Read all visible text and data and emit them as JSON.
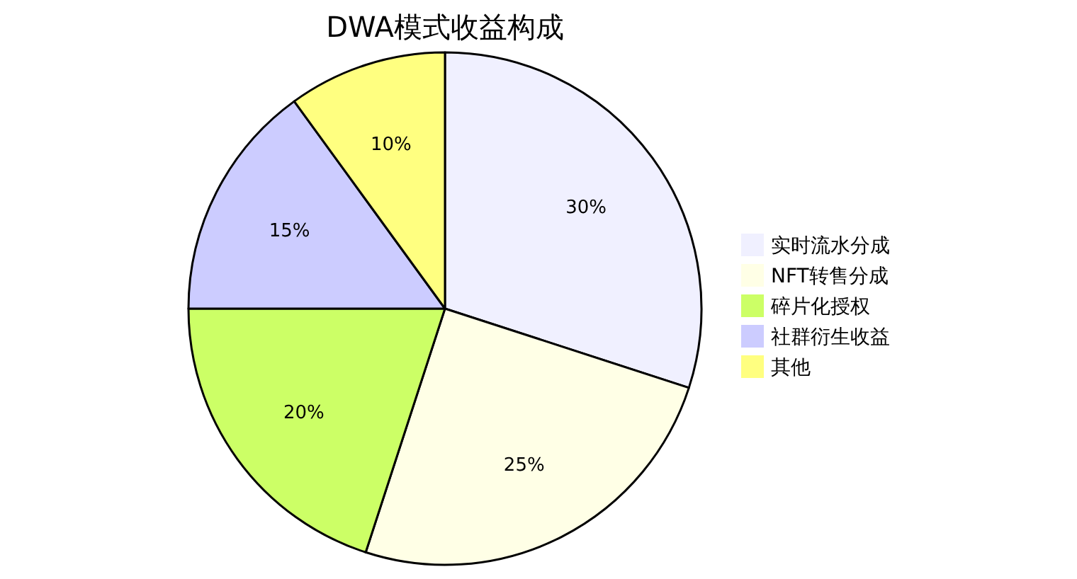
{
  "chart_data": {
    "type": "pie",
    "title": "DWA模式收益构成",
    "categories": [
      "实时流水分成",
      "NFT转售分成",
      "碎片化授权",
      "社群衍生收益",
      "其他"
    ],
    "values": [
      30,
      25,
      20,
      15,
      10
    ],
    "colors": [
      "#f0f0ff",
      "#ffffe6",
      "#ccff66",
      "#ccccff",
      "#ffff80"
    ],
    "value_labels": [
      "30%",
      "25%",
      "20%",
      "15%",
      "10%"
    ],
    "legend": "right"
  }
}
